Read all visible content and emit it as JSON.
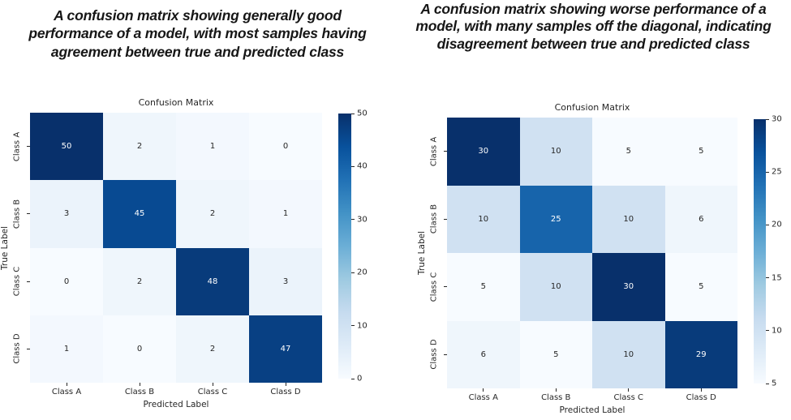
{
  "chart_data": [
    {
      "type": "heatmap",
      "caption": "A confusion matrix showing generally good performance of a model, with most samples having agreement between true and predicted class",
      "title": "Confusion Matrix",
      "xlabel": "Predicted Label",
      "ylabel": "True Label",
      "x_categories": [
        "Class A",
        "Class B",
        "Class C",
        "Class D"
      ],
      "y_categories": [
        "Class A",
        "Class B",
        "Class C",
        "Class D"
      ],
      "matrix": [
        [
          50,
          2,
          1,
          0
        ],
        [
          3,
          45,
          2,
          1
        ],
        [
          0,
          2,
          48,
          3
        ],
        [
          1,
          0,
          2,
          47
        ]
      ],
      "vmin": 0,
      "vmax": 50,
      "colorbar_ticks": [
        0,
        10,
        20,
        30,
        40,
        50
      ],
      "colormap": "Blues",
      "legend_position": "right-colorbar",
      "grid": false,
      "colors": {
        "max_cell": "#08306b",
        "min_cell": "#f7fbff",
        "text_dark": "#262626",
        "text_light": "#ffffff"
      }
    },
    {
      "type": "heatmap",
      "caption": "A confusion matrix showing worse performance of a model, with many samples off the diagonal, indicating disagreement between true and predicted class",
      "title": "Confusion Matrix",
      "xlabel": "Predicted Label",
      "ylabel": "True Label",
      "x_categories": [
        "Class A",
        "Class B",
        "Class C",
        "Class D"
      ],
      "y_categories": [
        "Class A",
        "Class B",
        "Class C",
        "Class D"
      ],
      "matrix": [
        [
          30,
          10,
          5,
          5
        ],
        [
          10,
          25,
          10,
          6
        ],
        [
          5,
          10,
          30,
          5
        ],
        [
          6,
          5,
          10,
          29
        ]
      ],
      "vmin": 5,
      "vmax": 30,
      "colorbar_ticks": [
        5,
        10,
        15,
        20,
        25,
        30
      ],
      "colormap": "Blues",
      "legend_position": "right-colorbar",
      "grid": false,
      "colors": {
        "max_cell": "#08306b",
        "min_cell": "#f7fbff",
        "text_dark": "#262626",
        "text_light": "#ffffff"
      }
    }
  ]
}
